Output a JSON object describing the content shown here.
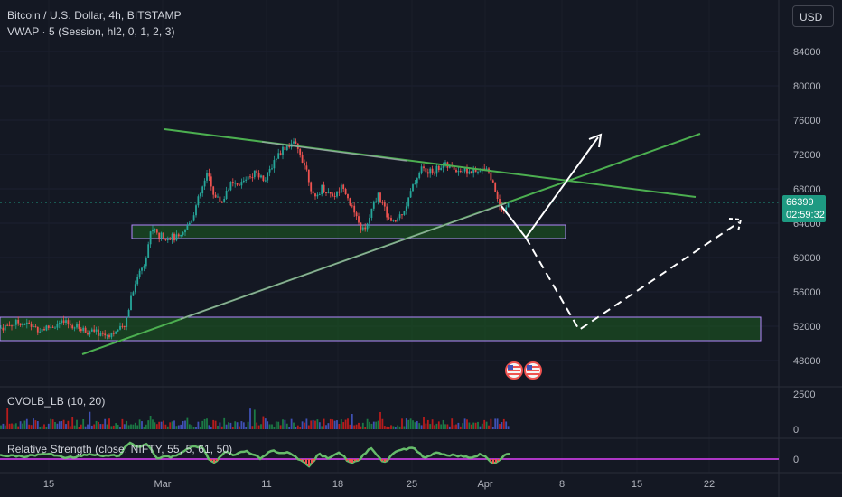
{
  "header": {
    "symbol_title": "Bitcoin / U.S. Dollar, 4h, BITSTAMP",
    "vwap_legend": "VWAP · 5 (Session, hl2, 0, 1, 2, 3)",
    "currency_button": "USD"
  },
  "last_price": {
    "value": "66399",
    "countdown": "02:59:32"
  },
  "indicators": {
    "volume_legend": "CVOLB_LB (10, 20)",
    "rsi_legend": "Relative Strength (close, NIFTY, 55, 5, 61, 50)"
  },
  "colors": {
    "background": "#141823",
    "up": "#26a69a",
    "down": "#ef5350",
    "trend_line": "#4caf50",
    "zone_fill": "#1b5e20",
    "zone_border": "#b388ff",
    "projection": "#ffffff",
    "price_tag": "#1e9a82"
  },
  "chart_data": [
    {
      "type": "candlestick",
      "symbol": "Bitcoin / U.S. Dollar",
      "interval": "4h",
      "exchange": "BITSTAMP",
      "x_ticks": [
        "15",
        "Mar",
        "11",
        "18",
        "25",
        "Apr",
        "8",
        "15",
        "22"
      ],
      "y_ticks": [
        84000,
        80000,
        76000,
        72000,
        68000,
        64000,
        60000,
        56000,
        52000,
        48000
      ],
      "ylim": [
        45000,
        87000
      ],
      "last_price": 66399,
      "price_path": [
        [
          0,
          51800
        ],
        [
          22,
          52500
        ],
        [
          45,
          51600
        ],
        [
          70,
          52400
        ],
        [
          95,
          51500
        ],
        [
          118,
          51000
        ],
        [
          138,
          51800
        ],
        [
          145,
          55500
        ],
        [
          152,
          57800
        ],
        [
          160,
          59500
        ],
        [
          168,
          63500
        ],
        [
          176,
          62500
        ],
        [
          188,
          62400
        ],
        [
          200,
          62200
        ],
        [
          212,
          64500
        ],
        [
          222,
          67500
        ],
        [
          230,
          69800
        ],
        [
          238,
          67000
        ],
        [
          246,
          66500
        ],
        [
          254,
          68500
        ],
        [
          264,
          68200
        ],
        [
          274,
          69500
        ],
        [
          284,
          70000
        ],
        [
          294,
          69000
        ],
        [
          304,
          71500
        ],
        [
          314,
          72800
        ],
        [
          324,
          73400
        ],
        [
          332,
          72200
        ],
        [
          340,
          70000
        ],
        [
          348,
          66500
        ],
        [
          356,
          68200
        ],
        [
          364,
          67500
        ],
        [
          372,
          67300
        ],
        [
          380,
          68500
        ],
        [
          388,
          66200
        ],
        [
          396,
          64000
        ],
        [
          404,
          63000
        ],
        [
          410,
          65000
        ],
        [
          418,
          67500
        ],
        [
          426,
          65500
        ],
        [
          434,
          63800
        ],
        [
          442,
          64800
        ],
        [
          450,
          66200
        ],
        [
          458,
          68500
        ],
        [
          466,
          70500
        ],
        [
          474,
          69800
        ],
        [
          482,
          70200
        ],
        [
          490,
          70800
        ],
        [
          500,
          70400
        ],
        [
          510,
          70200
        ],
        [
          520,
          70000
        ],
        [
          530,
          69800
        ],
        [
          538,
          70800
        ],
        [
          546,
          68500
        ],
        [
          552,
          66500
        ],
        [
          558,
          65500
        ],
        [
          564,
          66400
        ]
      ],
      "volume_ylim": [
        0,
        3000
      ],
      "volume_ticks": [
        2500,
        0
      ],
      "rsi_ticks": [
        0
      ]
    }
  ]
}
